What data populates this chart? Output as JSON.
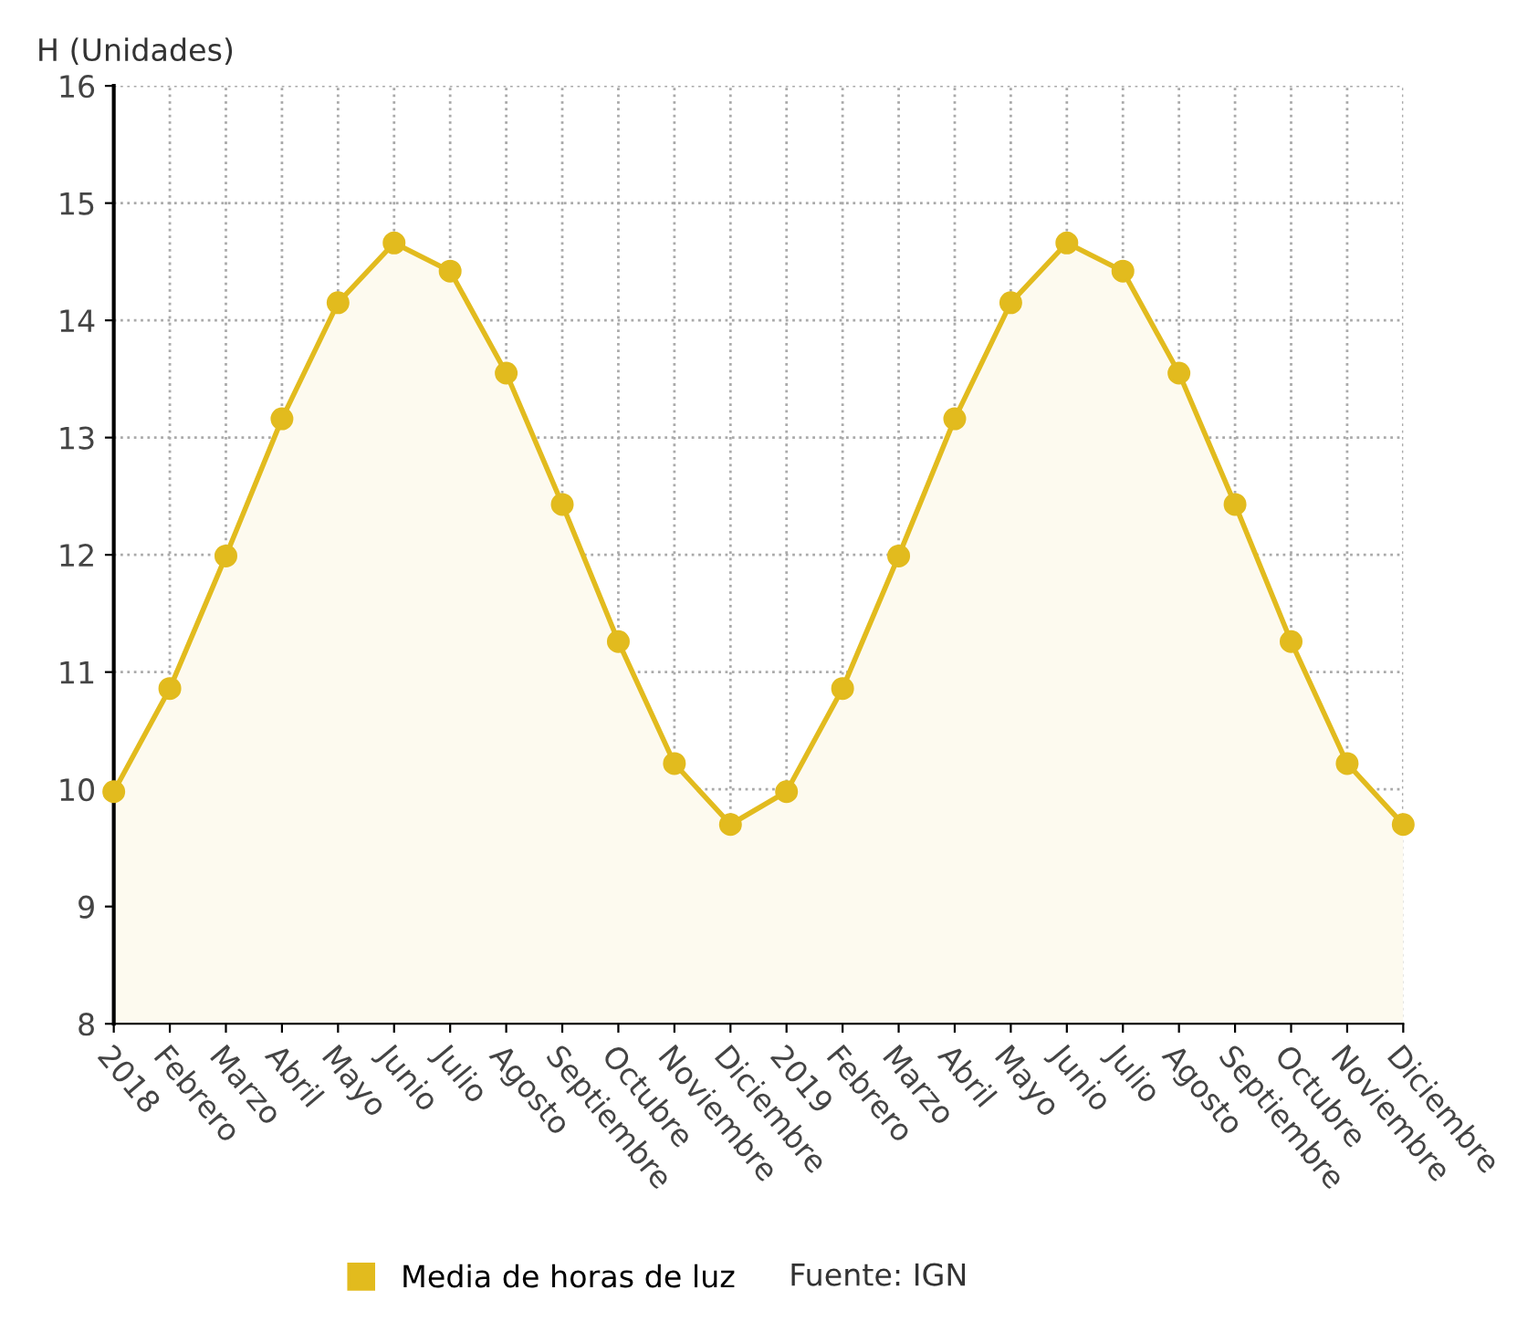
{
  "chart_data": {
    "type": "area",
    "ylabel": "H (Unidades)",
    "categories": [
      "2018",
      "Febrero",
      "Marzo",
      "Abril",
      "Mayo",
      "Junio",
      "Julio",
      "Agosto",
      "Septiembre",
      "Octubre",
      "Noviembre",
      "Diciembre",
      "2019",
      "Febrero",
      "Marzo",
      "Abril",
      "Mayo",
      "Junio",
      "Julio",
      "Agosto",
      "Septiembre",
      "Octubre",
      "Noviembre",
      "Diciembre"
    ],
    "series": [
      {
        "name": "Media de horas de luz",
        "color": "#e2bb1e",
        "values": [
          9.98,
          10.86,
          11.99,
          13.16,
          14.15,
          14.66,
          14.42,
          13.55,
          12.43,
          11.26,
          10.22,
          9.7,
          9.98,
          10.86,
          11.99,
          13.16,
          14.15,
          14.66,
          14.42,
          13.55,
          12.43,
          11.26,
          10.22,
          9.7
        ]
      }
    ],
    "ylim": [
      8,
      16
    ],
    "yticks": [
      8,
      9,
      10,
      11,
      12,
      13,
      14,
      15,
      16
    ],
    "grid": true,
    "legend": "bottom",
    "marker": "circle",
    "line_style": "solid",
    "annotations": [
      "Fuente: IGN"
    ]
  }
}
